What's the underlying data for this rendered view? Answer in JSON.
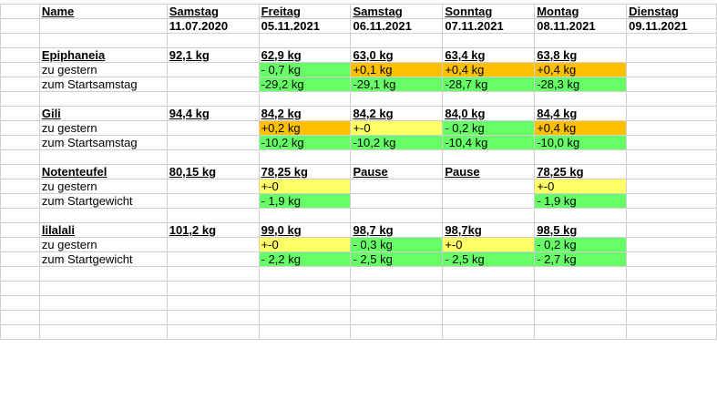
{
  "header": {
    "name_label": "Name",
    "days": [
      {
        "day": "Samstag",
        "date": "11.07.2020"
      },
      {
        "day": "Freitag",
        "date": "05.11.2021"
      },
      {
        "day": "Samstag",
        "date": "06.11.2021"
      },
      {
        "day": "Sonntag",
        "date": "07.11.2021"
      },
      {
        "day": "Montag",
        "date": "08.11.2021"
      },
      {
        "day": "Dienstag",
        "date": "09.11.2021"
      }
    ]
  },
  "persons": [
    {
      "name": "Epiphaneia",
      "start": "92,1 kg",
      "weights": [
        "62,9 kg",
        "63,0 kg",
        "63,4 kg",
        "63,8 kg",
        ""
      ],
      "delta_label": "zu gestern",
      "deltas": [
        "- 0,7 kg",
        "+0,1 kg",
        "+0,4 kg",
        "+0,4 kg",
        ""
      ],
      "delta_colors": [
        "green",
        "orange",
        "orange",
        "orange",
        ""
      ],
      "total_label": "zum Startsamstag",
      "totals": [
        "-29,2 kg",
        "-29,1 kg",
        "-28,7 kg",
        "-28,3 kg",
        ""
      ],
      "total_colors": [
        "green",
        "green",
        "green",
        "green",
        ""
      ]
    },
    {
      "name": "Gili",
      "start": "94,4 kg",
      "weights": [
        "84,2 kg",
        "84,2 kg",
        "84,0 kg",
        "84,4 kg",
        ""
      ],
      "delta_label": "zu gestern",
      "deltas": [
        "+0,2 kg",
        "+-0",
        "- 0,2 kg",
        "+0,4 kg",
        ""
      ],
      "delta_colors": [
        "orange",
        "yellow",
        "green",
        "orange",
        ""
      ],
      "total_label": "zum Startsamstag",
      "totals": [
        "-10,2 kg",
        "-10,2 kg",
        "-10,4 kg",
        "-10,0 kg",
        ""
      ],
      "total_colors": [
        "green",
        "green",
        "green",
        "green",
        ""
      ]
    },
    {
      "name": "Notenteufel",
      "start": "80,15 kg",
      "weights": [
        "78,25 kg",
        "Pause",
        "Pause",
        "78,25 kg",
        ""
      ],
      "delta_label": "zu gestern",
      "deltas": [
        "+-0",
        "",
        "",
        "+-0",
        ""
      ],
      "delta_colors": [
        "yellow",
        "",
        "",
        "yellow",
        ""
      ],
      "total_label": "zum Startgewicht",
      "totals": [
        "- 1,9 kg",
        "",
        "",
        "- 1,9 kg",
        ""
      ],
      "total_colors": [
        "green",
        "",
        "",
        "green",
        ""
      ]
    },
    {
      "name": "lilalali",
      "start": "101,2 kg",
      "weights": [
        "99,0 kg",
        "98,7 kg",
        "98,7kg",
        "98,5 kg",
        ""
      ],
      "delta_label": "zu gestern",
      "deltas": [
        "+-0",
        "- 0,3 kg",
        "+-0",
        "- 0,2 kg",
        ""
      ],
      "delta_colors": [
        "yellow",
        "green",
        "yellow",
        "green",
        ""
      ],
      "total_label": "zum Startgewicht",
      "totals": [
        "- 2,2 kg",
        "- 2,5 kg",
        "- 2,5 kg",
        "- 2,7 kg",
        ""
      ],
      "total_colors": [
        "green",
        "green",
        "green",
        "green",
        ""
      ]
    }
  ],
  "colors": {
    "green": "#66ff66",
    "orange": "#ffc000",
    "yellow": "#ffff66",
    "gridline": "#d0d0d0"
  }
}
